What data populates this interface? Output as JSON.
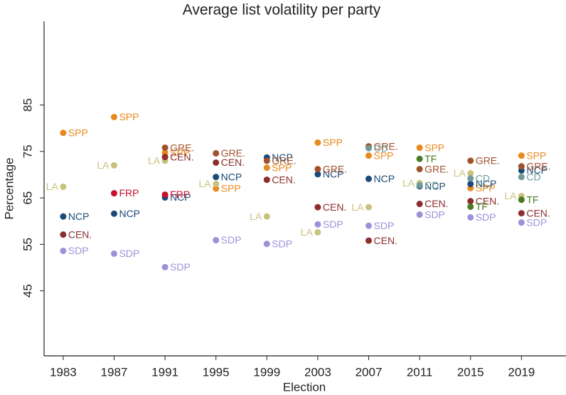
{
  "chart_data": {
    "type": "scatter",
    "title": "Average list volatility per party",
    "x_label": "Election",
    "y_label": "Percentage",
    "xlim": [
      1981.5,
      2022.5
    ],
    "ylim": [
      31,
      103
    ],
    "xticks": [
      1983,
      1987,
      1991,
      1995,
      1999,
      2003,
      2007,
      2011,
      2015,
      2019
    ],
    "yticks": [
      45,
      55,
      65,
      75,
      85
    ],
    "series": [
      {
        "name": "SPP",
        "color": "#e8891d",
        "x": [
          1983,
          1987,
          1991,
          1995,
          1999,
          2003,
          2007,
          2011,
          2015,
          2019
        ],
        "values": [
          79,
          82.4,
          74.7,
          67,
          71.5,
          76.9,
          74.1,
          75.8,
          67.1,
          74.1
        ]
      },
      {
        "name": "LA",
        "color": "#c9c27e",
        "x": [
          1983,
          1987,
          1991,
          1995,
          1999,
          2003,
          2007,
          2011,
          2015,
          2019
        ],
        "values": [
          67.4,
          72,
          73,
          68,
          61,
          57.6,
          63,
          68.2,
          70.3,
          65.4
        ]
      },
      {
        "name": "NCP",
        "color": "#1a4a78",
        "x": [
          1983,
          1987,
          1991,
          1995,
          1999,
          2003,
          2007,
          2011,
          2015,
          2019
        ],
        "values": [
          61,
          61.6,
          65.1,
          69.5,
          73.7,
          70.1,
          69.1,
          67.5,
          68,
          70.9
        ]
      },
      {
        "name": "CEN.",
        "color": "#8b2e2e",
        "x": [
          1983,
          1991,
          1995,
          1999,
          2003,
          2007,
          2011,
          2015,
          2019
        ],
        "values": [
          57.1,
          73.8,
          72.6,
          68.9,
          63,
          55.8,
          63.7,
          64.3,
          61.7
        ]
      },
      {
        "name": "SDP",
        "color": "#9d92da",
        "x": [
          1983,
          1987,
          1991,
          1995,
          1999,
          2003,
          2007,
          2011,
          2015,
          2019
        ],
        "values": [
          53.6,
          53,
          50.1,
          55.9,
          55.1,
          59.3,
          59,
          61.4,
          60.8,
          59.7
        ]
      },
      {
        "name": "FRP",
        "color": "#c8102e",
        "x": [
          1987,
          1991
        ],
        "values": [
          66,
          65.7
        ]
      },
      {
        "name": "GRE.",
        "color": "#a0522d",
        "x": [
          1991,
          1995,
          1999,
          2003,
          2007,
          2011,
          2015,
          2019
        ],
        "values": [
          75.8,
          74.6,
          73,
          71.2,
          76.1,
          71.2,
          73,
          71.8
        ]
      },
      {
        "name": "CD",
        "color": "#6e9a9a",
        "x": [
          2007,
          2011,
          2015,
          2019
        ],
        "values": [
          75.7,
          67.7,
          69.2,
          69.5
        ]
      },
      {
        "name": "TF",
        "color": "#4a7a23",
        "x": [
          2011,
          2015,
          2019
        ],
        "values": [
          73.4,
          63.1,
          64.6
        ]
      }
    ]
  }
}
